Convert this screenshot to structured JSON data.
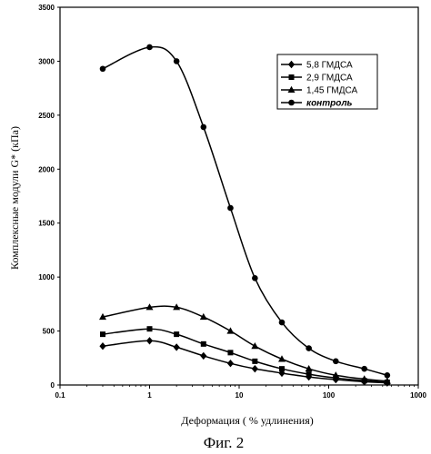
{
  "chart_data": {
    "type": "line",
    "title": "",
    "xlabel": "Деформация ( % удлинения)",
    "ylabel": "Комплексные модули G* (кПа)",
    "caption": "Фиг. 2",
    "xscale": "log",
    "xlim": [
      0.1,
      1000
    ],
    "ylim": [
      0,
      3500
    ],
    "x_ticks": [
      "0.1",
      "1",
      "10",
      "100",
      "1000"
    ],
    "y_ticks": [
      "0",
      "500",
      "1000",
      "1500",
      "2000",
      "2500",
      "3000",
      "3500"
    ],
    "grid": false,
    "legend_position": "top-right",
    "series": [
      {
        "name": "5,8  ГМДСА",
        "marker": "diamond",
        "x": [
          0.3,
          1,
          2,
          4,
          8,
          15,
          30,
          60,
          120,
          250,
          450
        ],
        "y": [
          360,
          410,
          350,
          270,
          200,
          150,
          110,
          75,
          50,
          30,
          20
        ]
      },
      {
        "name": "2,9  ГМДСА",
        "marker": "square",
        "x": [
          0.3,
          1,
          2,
          4,
          8,
          15,
          30,
          60,
          120,
          250,
          450
        ],
        "y": [
          470,
          520,
          470,
          380,
          300,
          220,
          150,
          100,
          65,
          40,
          25
        ]
      },
      {
        "name": "1,45 ГМДСА",
        "marker": "triangle",
        "x": [
          0.3,
          1,
          2,
          4,
          8,
          15,
          30,
          60,
          120,
          250,
          450
        ],
        "y": [
          630,
          720,
          720,
          630,
          500,
          360,
          240,
          150,
          90,
          55,
          35
        ]
      },
      {
        "name": "контроль",
        "marker": "circle",
        "x": [
          0.3,
          1,
          2,
          4,
          8,
          15,
          30,
          60,
          120,
          250,
          450
        ],
        "y": [
          2930,
          3130,
          3000,
          2390,
          1640,
          990,
          580,
          340,
          220,
          150,
          90
        ]
      }
    ]
  }
}
